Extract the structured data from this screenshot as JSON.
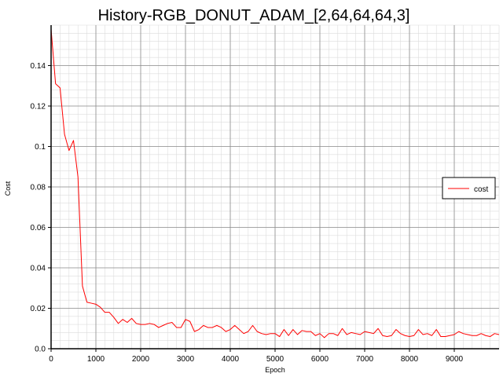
{
  "chart_data": {
    "type": "line",
    "title": "History-RGB_DONUT_ADAM_[2,64,64,64,3]",
    "xlabel": "Epoch",
    "ylabel": "Cost",
    "xlim": [
      0,
      10000
    ],
    "ylim": [
      0,
      0.16
    ],
    "x_ticks": [
      0,
      1000,
      2000,
      3000,
      4000,
      5000,
      6000,
      7000,
      8000,
      9000
    ],
    "x_tick_labels": [
      "0",
      "1000",
      "2000",
      "3000",
      "4000",
      "5000",
      "6000",
      "7000",
      "8000",
      "9000"
    ],
    "y_ticks": [
      0,
      0.02,
      0.04,
      0.06,
      0.08,
      0.1,
      0.12,
      0.14
    ],
    "y_tick_labels": [
      "0.0",
      "0.02",
      "0.04",
      "0.06",
      "0.08",
      "0.1",
      "0.12",
      "0.14"
    ],
    "grid": true,
    "legend": {
      "placement": "right",
      "entries": [
        "cost"
      ]
    },
    "series": [
      {
        "name": "cost",
        "color": "#ff0000",
        "x": [
          0,
          100,
          200,
          300,
          400,
          500,
          600,
          700,
          800,
          900,
          1000,
          1100,
          1200,
          1300,
          1400,
          1500,
          1600,
          1700,
          1800,
          1900,
          2000,
          2100,
          2200,
          2300,
          2400,
          2500,
          2600,
          2700,
          2800,
          2900,
          3000,
          3100,
          3200,
          3300,
          3400,
          3500,
          3600,
          3700,
          3800,
          3900,
          4000,
          4100,
          4200,
          4300,
          4400,
          4500,
          4600,
          4700,
          4800,
          4900,
          5000,
          5100,
          5200,
          5300,
          5400,
          5500,
          5600,
          5700,
          5800,
          5900,
          6000,
          6100,
          6200,
          6300,
          6400,
          6500,
          6600,
          6700,
          6800,
          6900,
          7000,
          7100,
          7200,
          7300,
          7400,
          7500,
          7600,
          7700,
          7800,
          7900,
          8000,
          8100,
          8200,
          8300,
          8400,
          8500,
          8600,
          8700,
          8800,
          8900,
          9000,
          9100,
          9200,
          9300,
          9400,
          9500,
          9600,
          9700,
          9800,
          9900,
          10000
        ],
        "values": [
          0.158,
          0.131,
          0.129,
          0.106,
          0.098,
          0.103,
          0.085,
          0.031,
          0.023,
          0.0225,
          0.022,
          0.0205,
          0.018,
          0.018,
          0.0155,
          0.0125,
          0.0145,
          0.013,
          0.015,
          0.0125,
          0.012,
          0.012,
          0.0125,
          0.012,
          0.0105,
          0.0115,
          0.0125,
          0.013,
          0.0105,
          0.0105,
          0.0145,
          0.0135,
          0.0085,
          0.0095,
          0.0115,
          0.0105,
          0.0105,
          0.0115,
          0.0105,
          0.0085,
          0.0095,
          0.0115,
          0.0095,
          0.0075,
          0.0085,
          0.0115,
          0.0085,
          0.0075,
          0.007,
          0.0075,
          0.0075,
          0.006,
          0.0095,
          0.0065,
          0.0095,
          0.007,
          0.009,
          0.0085,
          0.0085,
          0.0065,
          0.0075,
          0.0055,
          0.0075,
          0.0075,
          0.0065,
          0.01,
          0.007,
          0.008,
          0.0075,
          0.007,
          0.0085,
          0.008,
          0.0075,
          0.01,
          0.0065,
          0.006,
          0.0065,
          0.0095,
          0.0075,
          0.0065,
          0.006,
          0.0065,
          0.0095,
          0.007,
          0.0075,
          0.0065,
          0.0095,
          0.006,
          0.006,
          0.0065,
          0.007,
          0.0085,
          0.0075,
          0.007,
          0.0065,
          0.0065,
          0.0075,
          0.0065,
          0.006,
          0.0075,
          0.007
        ]
      }
    ]
  }
}
